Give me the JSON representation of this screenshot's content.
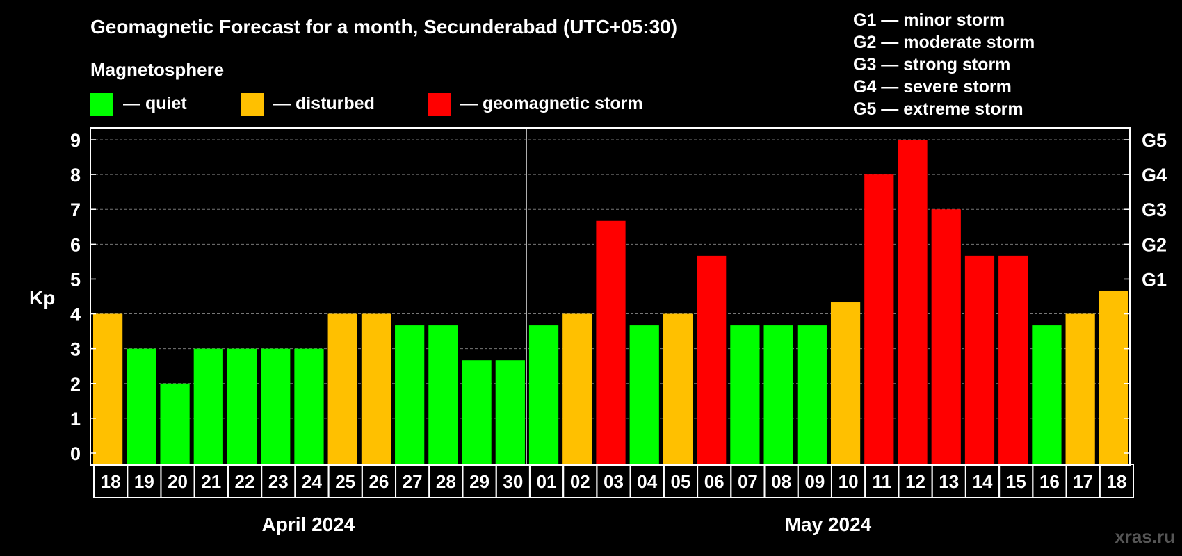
{
  "chart_data": {
    "type": "bar",
    "title": "Geomagnetic Forecast for a month, Secunderabad (UTC+05:30)",
    "legend_title": "Magnetosphere",
    "legend": [
      {
        "label": "— quiet",
        "color": "#00ff00",
        "key": "quiet"
      },
      {
        "label": "— disturbed",
        "color": "#ffc000",
        "key": "disturbed"
      },
      {
        "label": "— geomagnetic storm",
        "color": "#ff0000",
        "key": "storm"
      }
    ],
    "g_scale_legend": [
      "G1 — minor storm",
      "G2 — moderate storm",
      "G3 — strong storm",
      "G4 — severe storm",
      "G5 — extreme storm"
    ],
    "ylabel": "Kp",
    "ylim": [
      0,
      9
    ],
    "yticks": [
      "0",
      "1",
      "2",
      "3",
      "4",
      "5",
      "6",
      "7",
      "8",
      "9"
    ],
    "right_ticks": [
      {
        "value": 5,
        "label": "G1"
      },
      {
        "value": 6,
        "label": "G2"
      },
      {
        "value": 7,
        "label": "G3"
      },
      {
        "value": 8,
        "label": "G4"
      },
      {
        "value": 9,
        "label": "G5"
      }
    ],
    "grid": true,
    "categories": [
      "18",
      "19",
      "20",
      "21",
      "22",
      "23",
      "24",
      "25",
      "26",
      "27",
      "28",
      "29",
      "30",
      "01",
      "02",
      "03",
      "04",
      "05",
      "06",
      "07",
      "08",
      "09",
      "10",
      "11",
      "12",
      "13",
      "14",
      "15",
      "16",
      "17",
      "18"
    ],
    "values": [
      4,
      3,
      2,
      3,
      3,
      3,
      3,
      4,
      4,
      3.67,
      3.67,
      2.67,
      2.67,
      3.67,
      4,
      6.67,
      3.67,
      4,
      5.67,
      3.67,
      3.67,
      3.67,
      4.33,
      8,
      9,
      7,
      5.67,
      5.67,
      3.67,
      4,
      4.67
    ],
    "status": [
      "disturbed",
      "quiet",
      "quiet",
      "quiet",
      "quiet",
      "quiet",
      "quiet",
      "disturbed",
      "disturbed",
      "quiet",
      "quiet",
      "quiet",
      "quiet",
      "quiet",
      "disturbed",
      "storm",
      "quiet",
      "disturbed",
      "storm",
      "quiet",
      "quiet",
      "quiet",
      "disturbed",
      "storm",
      "storm",
      "storm",
      "storm",
      "storm",
      "quiet",
      "disturbed",
      "disturbed"
    ],
    "months": [
      {
        "label": "April 2024",
        "count": 13
      },
      {
        "label": "May 2024",
        "count": 18
      }
    ],
    "watermark": "xras.ru"
  }
}
